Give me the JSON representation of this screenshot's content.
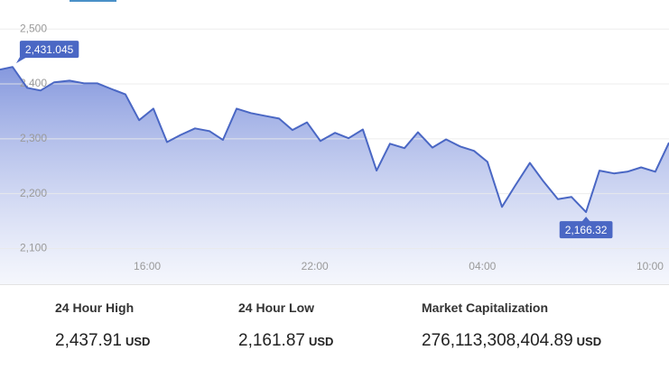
{
  "chart_data": {
    "type": "line",
    "x": [
      10.73,
      11.18,
      11.7,
      12.18,
      12.67,
      13.22,
      13.74,
      14.22,
      14.71,
      15.22,
      15.71,
      16.22,
      16.71,
      17.19,
      17.71,
      18.23,
      18.71,
      19.2,
      19.71,
      20.2,
      20.72,
      21.2,
      21.72,
      22.2,
      22.72,
      23.21,
      23.72,
      24.21,
      24.69,
      25.21,
      25.69,
      26.21,
      26.7,
      27.21,
      27.7,
      28.18,
      28.7,
      29.18,
      29.7,
      30.19,
      30.7,
      31.19,
      31.71,
      32.19,
      32.71,
      33.19,
      33.68,
      34.19,
      34.68
    ],
    "xlim": [
      10.73,
      34.68
    ],
    "xticks": [
      {
        "value": 16,
        "label": "16:00"
      },
      {
        "value": 22,
        "label": "22:00"
      },
      {
        "value": 28,
        "label": "04:00"
      },
      {
        "value": 34,
        "label": "10:00"
      }
    ],
    "ylim": [
      2035,
      2553
    ],
    "yticks": [
      {
        "value": 2100,
        "label": "2,100"
      },
      {
        "value": 2200,
        "label": "2,200"
      },
      {
        "value": 2300,
        "label": "2,300"
      },
      {
        "value": 2400,
        "label": "2,400"
      },
      {
        "value": 2500,
        "label": "2,500"
      }
    ],
    "grid": true,
    "series": [
      {
        "color": "#4a67c4",
        "values": [
          2426,
          2431.045,
          2393,
          2388,
          2403,
          2406,
          2401,
          2401,
          2391,
          2381,
          2334,
          2355,
          2294,
          2307,
          2319,
          2314,
          2298,
          2355,
          2347,
          2342,
          2337,
          2316,
          2330,
          2296,
          2311,
          2301,
          2317,
          2242,
          2291,
          2283,
          2312,
          2284,
          2299,
          2286,
          2278,
          2258,
          2176,
          2215,
          2256,
          2222,
          2190,
          2194,
          2166.32,
          2242,
          2237,
          2240,
          2248,
          2240,
          2293
        ],
        "value_labels": [
          null,
          "2,431.045",
          null,
          null,
          null,
          null,
          null,
          null,
          null,
          null,
          null,
          null,
          null,
          null,
          null,
          null,
          null,
          null,
          null,
          null,
          null,
          null,
          null,
          null,
          null,
          null,
          null,
          null,
          null,
          null,
          null,
          null,
          null,
          null,
          null,
          null,
          null,
          null,
          null,
          null,
          null,
          null,
          "2,166.32",
          null,
          null,
          null,
          null,
          null,
          null
        ]
      }
    ]
  },
  "stats": [
    {
      "label": "24 Hour High",
      "value": "2,437.91",
      "unit": "USD"
    },
    {
      "label": "24 Hour Low",
      "value": "2,161.87",
      "unit": "USD"
    },
    {
      "label": "Market Capitalization",
      "value": "276,113,308,404.89",
      "unit": "USD"
    }
  ]
}
